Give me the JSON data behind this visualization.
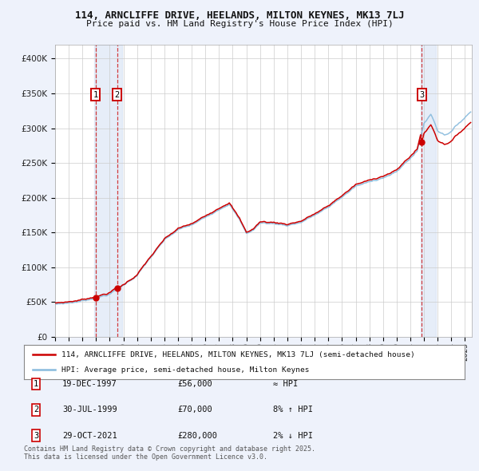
{
  "title1": "114, ARNCLIFFE DRIVE, HEELANDS, MILTON KEYNES, MK13 7LJ",
  "title2": "Price paid vs. HM Land Registry's House Price Index (HPI)",
  "legend_line1": "114, ARNCLIFFE DRIVE, HEELANDS, MILTON KEYNES, MK13 7LJ (semi-detached house)",
  "legend_line2": "HPI: Average price, semi-detached house, Milton Keynes",
  "sale1_date": "19-DEC-1997",
  "sale1_price": 56000,
  "sale1_hpi": "≈ HPI",
  "sale2_date": "30-JUL-1999",
  "sale2_price": 70000,
  "sale2_hpi": "8% ↑ HPI",
  "sale3_date": "29-OCT-2021",
  "sale3_price": 280000,
  "sale3_hpi": "2% ↓ HPI",
  "footnote": "Contains HM Land Registry data © Crown copyright and database right 2025.\nThis data is licensed under the Open Government Licence v3.0.",
  "bg_color": "#eef2fb",
  "plot_bg": "#ffffff",
  "red_line_color": "#cc0000",
  "blue_line_color": "#88bbdd",
  "ylim": [
    0,
    420000
  ],
  "yticks": [
    0,
    50000,
    100000,
    150000,
    200000,
    250000,
    300000,
    350000,
    400000
  ],
  "sale1_t": 1997.958,
  "sale2_t": 1999.542,
  "sale3_t": 2021.833
}
